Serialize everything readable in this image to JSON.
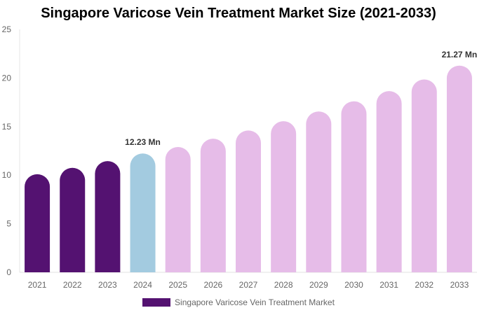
{
  "chart_data": {
    "type": "bar",
    "title": "Singapore Varicose Vein Treatment Market Size (2021-2033)",
    "categories": [
      "2021",
      "2022",
      "2023",
      "2024",
      "2025",
      "2026",
      "2027",
      "2028",
      "2029",
      "2030",
      "2031",
      "2032",
      "2033"
    ],
    "series": [
      {
        "name": "Singapore Varicose Vein Treatment Market",
        "values": [
          10.1,
          10.75,
          11.45,
          12.23,
          12.9,
          13.75,
          14.6,
          15.55,
          16.55,
          17.6,
          18.65,
          19.85,
          21.27
        ]
      }
    ],
    "data_labels": {
      "3": "12.23 Mn",
      "12": "21.27 Mn"
    },
    "ylim": [
      0,
      25
    ],
    "yticks": [
      0,
      5,
      10,
      15,
      20,
      25
    ],
    "grid": false,
    "legend_position": "bottom",
    "colors": {
      "historical": "#541271",
      "base_year": "#a3cbe0",
      "forecast": "#e6bce8"
    }
  }
}
